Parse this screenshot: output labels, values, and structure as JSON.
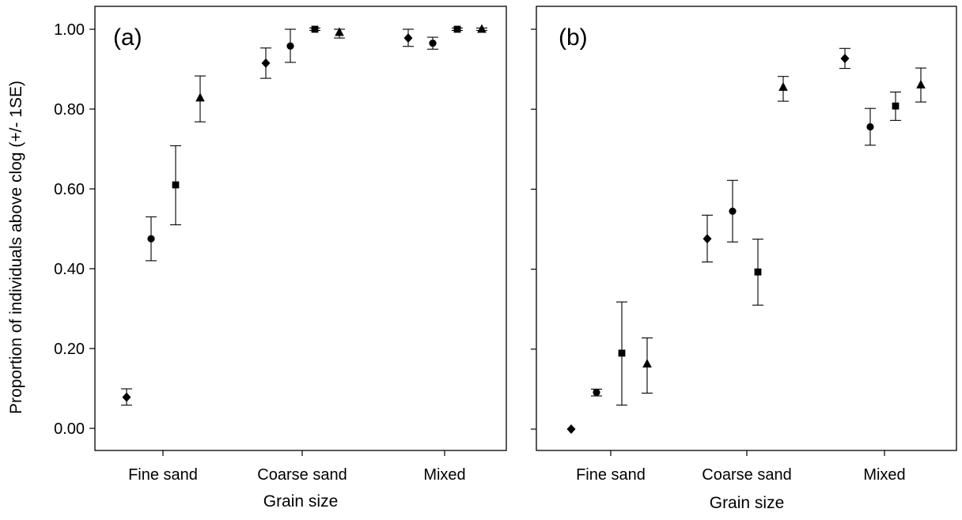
{
  "figure": {
    "ylabel": "Proportion of individuals above clog (+/- 1SE)"
  },
  "chart_data": [
    {
      "type": "scatter",
      "panel_label": "(a)",
      "title": "",
      "xlabel": "Grain size",
      "ylabel": "Proportion of individuals above clog (+/- 1SE)",
      "categories": [
        "Fine sand",
        "Coarse sand",
        "Mixed"
      ],
      "ylim": [
        0,
        1
      ],
      "yticks": [
        "0.00",
        "0.20",
        "0.40",
        "0.60",
        "0.80",
        "1.00"
      ],
      "error_bars": "+/- 1SE",
      "grid": false,
      "series": [
        {
          "marker": "diamond",
          "values": [
            0.078,
            0.915,
            0.978
          ],
          "lower": [
            0.058,
            0.877,
            0.957
          ],
          "upper": [
            0.099,
            0.953,
            1.0
          ]
        },
        {
          "marker": "circle",
          "values": [
            0.475,
            0.958,
            0.965
          ],
          "lower": [
            0.42,
            0.917,
            0.95
          ],
          "upper": [
            0.53,
            1.0,
            0.98
          ]
        },
        {
          "marker": "square",
          "values": [
            0.61,
            1.0,
            1.0
          ],
          "lower": [
            0.51,
            0.997,
            0.997
          ],
          "upper": [
            0.708,
            1.003,
            1.003
          ]
        },
        {
          "marker": "triangle",
          "values": [
            0.828,
            0.992,
            1.0
          ],
          "lower": [
            0.768,
            0.978,
            0.997
          ],
          "upper": [
            0.883,
            1.0,
            1.003
          ]
        }
      ]
    },
    {
      "type": "scatter",
      "panel_label": "(b)",
      "title": "",
      "xlabel": "Grain size",
      "categories": [
        "Fine sand",
        "Coarse sand",
        "Mixed"
      ],
      "ylim": [
        0,
        1
      ],
      "yticks": [
        "",
        "",
        "",
        "",
        "",
        ""
      ],
      "error_bars": "+/- 1SE",
      "grid": false,
      "series": [
        {
          "marker": "diamond",
          "values": [
            0.0,
            0.476,
            0.927
          ],
          "lower": [
            0.0,
            0.418,
            0.902
          ],
          "upper": [
            0.0,
            0.535,
            0.952
          ]
        },
        {
          "marker": "circle",
          "values": [
            0.092,
            0.545,
            0.756
          ],
          "lower": [
            0.083,
            0.468,
            0.71
          ],
          "upper": [
            0.1,
            0.622,
            0.802
          ]
        },
        {
          "marker": "square",
          "values": [
            0.19,
            0.393,
            0.808
          ],
          "lower": [
            0.06,
            0.31,
            0.772
          ],
          "upper": [
            0.318,
            0.475,
            0.843
          ]
        },
        {
          "marker": "triangle",
          "values": [
            0.163,
            0.855,
            0.861
          ],
          "lower": [
            0.09,
            0.82,
            0.818
          ],
          "upper": [
            0.228,
            0.882,
            0.903
          ]
        }
      ]
    }
  ]
}
